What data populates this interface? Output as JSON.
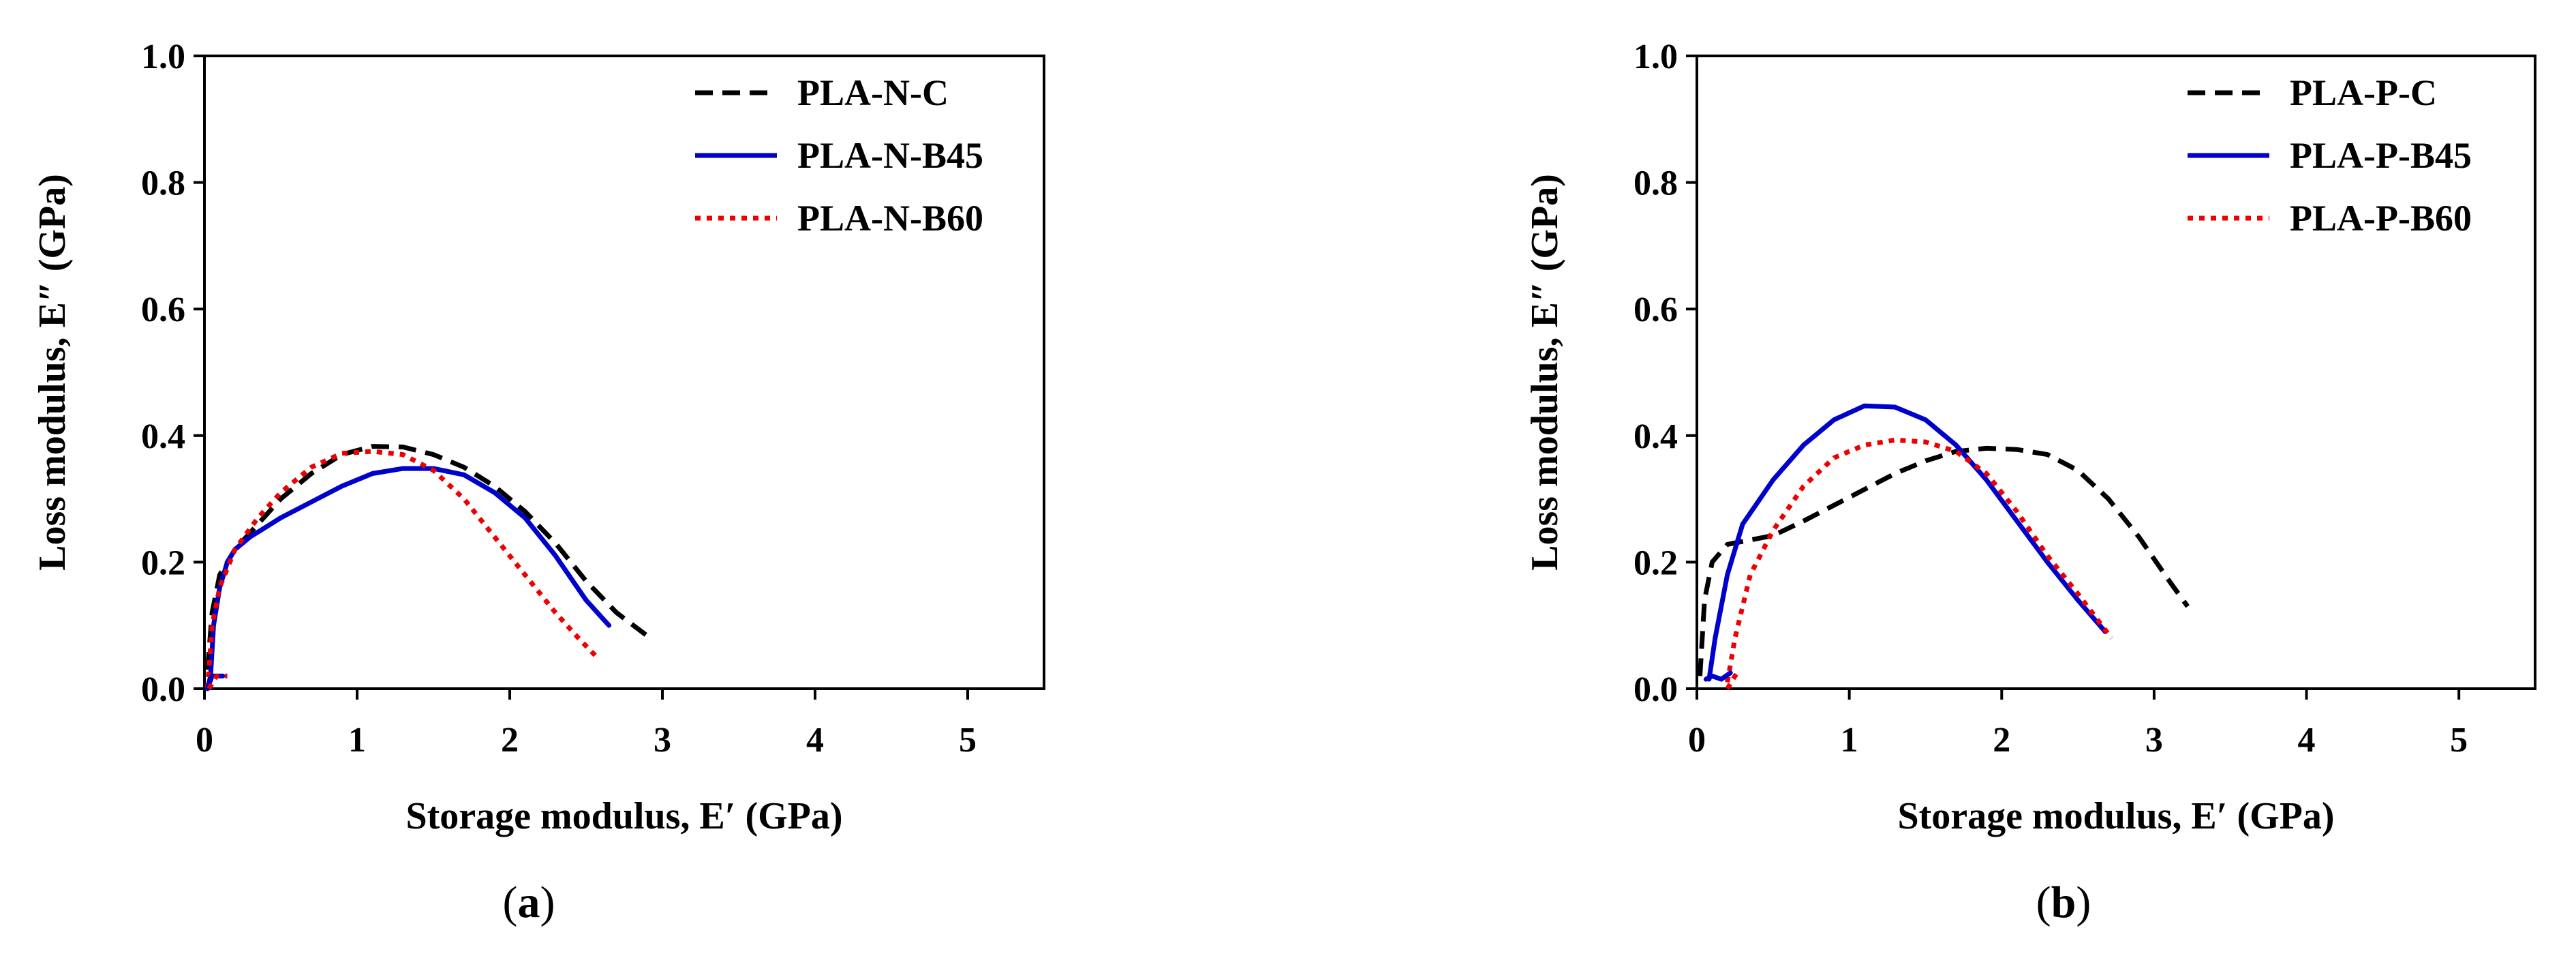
{
  "chart_data": [
    {
      "type": "line",
      "panel_label": "(a)",
      "panel_letter": "a",
      "xlabel": "Storage modulus, E′ (GPa)",
      "ylabel": "Loss modulus, E″ (GPa)",
      "xlim": [
        0,
        5.5
      ],
      "ylim": [
        0,
        1.0
      ],
      "xticks": [
        0,
        1,
        2,
        3,
        4,
        5
      ],
      "yticks": [
        0.0,
        0.2,
        0.4,
        0.6,
        0.8,
        1.0
      ],
      "xtick_labels": [
        "0",
        "1",
        "2",
        "3",
        "4",
        "5"
      ],
      "ytick_labels": [
        "0.0",
        "0.2",
        "0.4",
        "0.6",
        "0.8",
        "1.0"
      ],
      "legend_position": "top-right",
      "series": [
        {
          "name": "PLA-N-C",
          "color": "#000000",
          "style": "dashed",
          "x": [
            0.02,
            0.05,
            0.1,
            0.2,
            0.35,
            0.5,
            0.7,
            0.9,
            1.1,
            1.3,
            1.5,
            1.7,
            1.9,
            2.1,
            2.3,
            2.5,
            2.7,
            2.92
          ],
          "y": [
            0.03,
            0.12,
            0.18,
            0.22,
            0.26,
            0.3,
            0.34,
            0.37,
            0.383,
            0.382,
            0.37,
            0.35,
            0.32,
            0.28,
            0.23,
            0.17,
            0.12,
            0.08
          ]
        },
        {
          "name": "PLA-N-B45",
          "color": "#0000cc",
          "style": "solid",
          "x": [
            0.02,
            0.04,
            0.06,
            0.1,
            0.15,
            0.2,
            0.3,
            0.5,
            0.7,
            0.9,
            1.1,
            1.3,
            1.5,
            1.7,
            1.9,
            2.1,
            2.3,
            2.5,
            2.65
          ],
          "y": [
            0.0,
            0.02,
            0.1,
            0.16,
            0.2,
            0.22,
            0.24,
            0.27,
            0.295,
            0.32,
            0.34,
            0.348,
            0.348,
            0.338,
            0.31,
            0.27,
            0.21,
            0.14,
            0.1
          ]
        },
        {
          "name": "PLA-N-B60",
          "color": "#ee0000",
          "style": "dotted",
          "x": [
            0.02,
            0.05,
            0.1,
            0.2,
            0.35,
            0.5,
            0.7,
            0.9,
            1.1,
            1.3,
            1.5,
            1.7,
            1.9,
            2.1,
            2.3,
            2.45,
            2.57
          ],
          "y": [
            0.0,
            0.1,
            0.16,
            0.22,
            0.27,
            0.31,
            0.35,
            0.372,
            0.375,
            0.37,
            0.345,
            0.3,
            0.24,
            0.18,
            0.12,
            0.08,
            0.05
          ]
        },
        {
          "name": "PLA-N-B45 (low branch)",
          "color": "#0000cc",
          "style": "solid",
          "legend": false,
          "x": [
            0.02,
            0.05,
            0.08,
            0.12
          ],
          "y": [
            0.0,
            0.02,
            0.02,
            0.02
          ]
        },
        {
          "name": "PLA-N-B60 (low branch)",
          "color": "#ee0000",
          "style": "dotted",
          "legend": false,
          "x": [
            0.03,
            0.08,
            0.15
          ],
          "y": [
            0.0,
            0.02,
            0.02
          ]
        }
      ]
    },
    {
      "type": "line",
      "panel_label": "(b)",
      "panel_letter": "b",
      "xlabel": "Storage modulus, E′ (GPa)",
      "ylabel": "Loss modulus, E″ (GPa)",
      "xlim": [
        0,
        5.5
      ],
      "ylim": [
        0,
        1.0
      ],
      "xticks": [
        0,
        1,
        2,
        3,
        4,
        5
      ],
      "yticks": [
        0.0,
        0.2,
        0.4,
        0.6,
        0.8,
        1.0
      ],
      "xtick_labels": [
        "0",
        "1",
        "2",
        "3",
        "4",
        "5"
      ],
      "ytick_labels": [
        "0.0",
        "0.2",
        "0.4",
        "0.6",
        "0.8",
        "1.0"
      ],
      "legend_position": "top-right",
      "series": [
        {
          "name": "PLA-P-C",
          "color": "#000000",
          "style": "dashed",
          "x": [
            0.02,
            0.05,
            0.1,
            0.2,
            0.35,
            0.5,
            0.7,
            0.9,
            1.1,
            1.3,
            1.5,
            1.7,
            1.9,
            2.1,
            2.3,
            2.5,
            2.7,
            2.9,
            3.1,
            3.22
          ],
          "y": [
            0.02,
            0.14,
            0.2,
            0.228,
            0.235,
            0.242,
            0.265,
            0.29,
            0.315,
            0.34,
            0.36,
            0.375,
            0.38,
            0.378,
            0.37,
            0.345,
            0.3,
            0.24,
            0.17,
            0.13
          ]
        },
        {
          "name": "PLA-P-B45",
          "color": "#0000cc",
          "style": "solid",
          "x": [
            0.08,
            0.12,
            0.2,
            0.3,
            0.5,
            0.7,
            0.9,
            1.1,
            1.3,
            1.5,
            1.7,
            1.9,
            2.1,
            2.3,
            2.5,
            2.68
          ],
          "y": [
            0.015,
            0.08,
            0.18,
            0.26,
            0.33,
            0.385,
            0.425,
            0.447,
            0.445,
            0.425,
            0.385,
            0.33,
            0.265,
            0.2,
            0.14,
            0.09
          ]
        },
        {
          "name": "PLA-P-B60",
          "color": "#ee0000",
          "style": "dotted",
          "x": [
            0.2,
            0.25,
            0.35,
            0.5,
            0.7,
            0.9,
            1.1,
            1.3,
            1.5,
            1.7,
            1.9,
            2.1,
            2.3,
            2.5,
            2.72
          ],
          "y": [
            0.01,
            0.08,
            0.18,
            0.25,
            0.32,
            0.365,
            0.385,
            0.393,
            0.39,
            0.375,
            0.34,
            0.28,
            0.21,
            0.15,
            0.08
          ]
        },
        {
          "name": "PLA-P-B45 (low branch)",
          "color": "#0000cc",
          "style": "solid",
          "legend": false,
          "x": [
            0.06,
            0.1,
            0.16,
            0.22
          ],
          "y": [
            0.015,
            0.02,
            0.015,
            0.025
          ]
        },
        {
          "name": "PLA-P-B60 (low branch)",
          "color": "#ee0000",
          "style": "dotted",
          "legend": false,
          "x": [
            0.2,
            0.25,
            0.28
          ],
          "y": [
            0.0,
            0.02,
            0.03
          ]
        }
      ]
    }
  ]
}
